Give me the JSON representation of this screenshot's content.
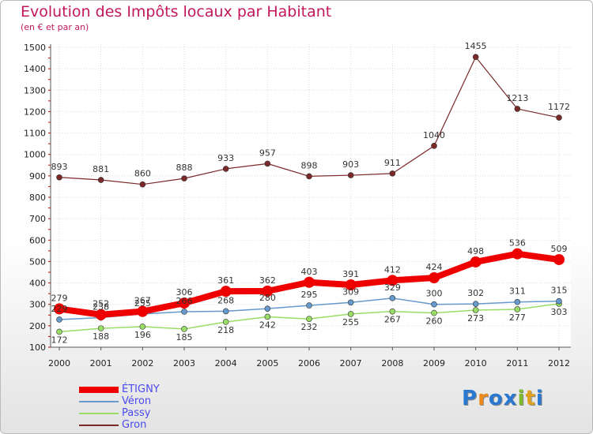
{
  "header": {
    "title": "Evolution des Impôts locaux par Habitant",
    "subtitle": "(en € et par an)"
  },
  "chart_data": {
    "type": "line",
    "title": "Evolution des Impôts locaux par Habitant",
    "subtitle": "(en € et par an)",
    "xlabel": "",
    "ylabel": "",
    "ylim": [
      100,
      1500
    ],
    "yticks": [
      100,
      200,
      300,
      400,
      500,
      600,
      700,
      800,
      900,
      1000,
      1100,
      1200,
      1300,
      1400,
      1500
    ],
    "grid": true,
    "legend_position": "bottom-left",
    "x": [
      2000,
      2001,
      2002,
      2003,
      2004,
      2005,
      2006,
      2007,
      2008,
      2009,
      2010,
      2011,
      2012
    ],
    "series": [
      {
        "name": "ÉTIGNY",
        "color": "#ee0000",
        "values": [
          279,
          252,
          267,
          306,
          361,
          362,
          403,
          391,
          412,
          424,
          498,
          536,
          509
        ]
      },
      {
        "name": "Véron",
        "color": "#6699cc",
        "values": [
          229,
          238,
          255,
          266,
          268,
          280,
          295,
          309,
          329,
          300,
          302,
          311,
          315
        ]
      },
      {
        "name": "Passy",
        "color": "#99dd66",
        "values": [
          172,
          188,
          196,
          185,
          218,
          242,
          232,
          255,
          267,
          260,
          273,
          277,
          303
        ]
      },
      {
        "name": "Gron",
        "color": "#7a2828",
        "values": [
          893,
          881,
          860,
          888,
          933,
          957,
          898,
          903,
          911,
          1040,
          1455,
          1213,
          1172
        ]
      }
    ]
  },
  "logo": {
    "letters": [
      "P",
      "r",
      "o",
      "x",
      "i",
      "t",
      "i"
    ],
    "colors": [
      "#2b78d0",
      "#f08a1c",
      "#2b78d0",
      "#2b78d0",
      "#7dbb2a",
      "#e0a020",
      "#2b78d0"
    ]
  }
}
